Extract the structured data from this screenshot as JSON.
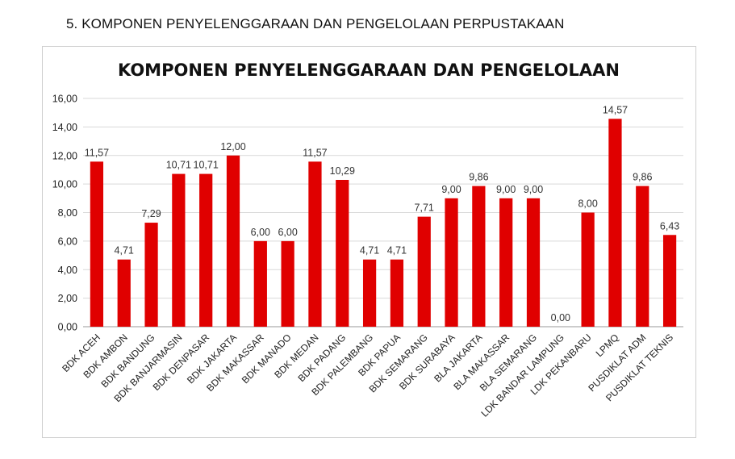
{
  "document": {
    "section_heading": "5.   KOMPONEN PENYELENGGARAAN DAN PENGELOLAAN PERPUSTAKAAN"
  },
  "chart_data": {
    "type": "bar",
    "title": "KOMPONEN PENYELENGGARAAN DAN PENGELOLAAN",
    "xlabel": "",
    "ylabel": "",
    "ylim": [
      0,
      16
    ],
    "y_ticks": [
      "0,00",
      "2,00",
      "4,00",
      "6,00",
      "8,00",
      "10,00",
      "12,00",
      "14,00",
      "16,00"
    ],
    "grid": true,
    "legend": "none",
    "bar_color": "#e00000",
    "categories": [
      "BDK ACEH",
      "BDK AMBON",
      "BDK BANDUNG",
      "BDK BANJARMASIN",
      "BDK DENPASAR",
      "BDK JAKARTA",
      "BDK MAKASSAR",
      "BDK MANADO",
      "BDK MEDAN",
      "BDK PADANG",
      "BDK PALEMBANG",
      "BDK PAPUA",
      "BDK SEMARANG",
      "BDK SURABAYA",
      "BLA JAKARTA",
      "BLA MAKASSAR",
      "BLA SEMARANG",
      "LDK BANDAR LAMPUNG",
      "LDK PEKANBARU",
      "LPMQ",
      "PUSDIKLAT ADM",
      "PUSDIKLAT TEKNIS"
    ],
    "values": [
      11.57,
      4.71,
      7.29,
      10.71,
      10.71,
      12.0,
      6.0,
      6.0,
      11.57,
      10.29,
      4.71,
      4.71,
      7.71,
      9.0,
      9.86,
      9.0,
      9.0,
      0.0,
      8.0,
      14.57,
      9.86,
      6.43
    ],
    "value_labels": [
      "11,57",
      "4,71",
      "7,29",
      "10,71",
      "10,71",
      "12,00",
      "6,00",
      "6,00",
      "11,57",
      "10,29",
      "4,71",
      "4,71",
      "7,71",
      "9,00",
      "9,86",
      "9,00",
      "9,00",
      "0,00",
      "8,00",
      "14,57",
      "9,86",
      "6,43"
    ]
  }
}
